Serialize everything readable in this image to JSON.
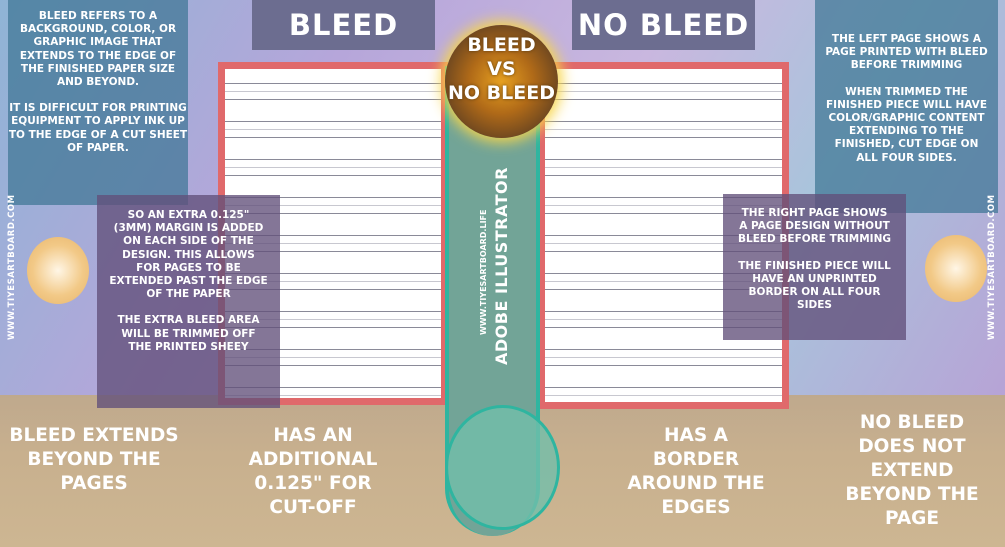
{
  "titles": {
    "bleed": "BLEED",
    "no_bleed": "NO BLEED",
    "center": [
      "BLEED",
      "VS",
      "NO BLEED"
    ]
  },
  "boxes": {
    "top_left": [
      "BLEED REFERS TO A BACKGROUND, COLOR, OR GRAPHIC IMAGE THAT EXTENDS TO THE EDGE OF THE FINISHED PAPER SIZE AND BEYOND.",
      "IT IS DIFFICULT FOR PRINTING EQUIPMENT TO APPLY INK UP TO THE EDGE OF A CUT SHEET OF PAPER."
    ],
    "mid_left": [
      "SO AN EXTRA 0.125\" (3MM) MARGIN IS ADDED ON EACH SIDE OF THE DESIGN. THIS ALLOWS FOR PAGES TO BE EXTENDED PAST THE EDGE OF THE PAPER",
      "THE EXTRA BLEED AREA WILL BE TRIMMED OFF THE PRINTED SHEEY"
    ],
    "top_right": [
      "THE LEFT PAGE SHOWS A PAGE PRINTED WITH BLEED BEFORE TRIMMING",
      "WHEN TRIMMED THE FINISHED PIECE WILL HAVE COLOR/GRAPHIC CONTENT EXTENDING TO THE FINISHED, CUT EDGE ON ALL FOUR SIDES."
    ],
    "mid_right": [
      "THE RIGHT PAGE SHOWS A PAGE DESIGN WITHOUT BLEED BEFORE TRIMMING",
      "THE FINISHED PIECE WILL HAVE AN UNPRINTED BORDER ON ALL FOUR SIDES"
    ]
  },
  "center_strip": {
    "label": "ADOBE ILLUSTRATOR",
    "url": "WWW.TIYESARTBOARD.LIFE"
  },
  "side_url": "WWW.TIYESARTBOARD.COM",
  "captions": [
    "BLEED EXTENDS BEYOND THE PAGES",
    "HAS AN ADDITIONAL 0.125\" FOR CUT-OFF",
    "HAS A BORDER AROUND THE EDGES",
    "NO BLEED DOES NOT EXTEND BEYOND THE PAGE"
  ],
  "colors": {
    "page_border": "#e0696b",
    "strip": "#72a497",
    "strip_border": "#2fb5a0",
    "title_box": "#6c6d90"
  }
}
